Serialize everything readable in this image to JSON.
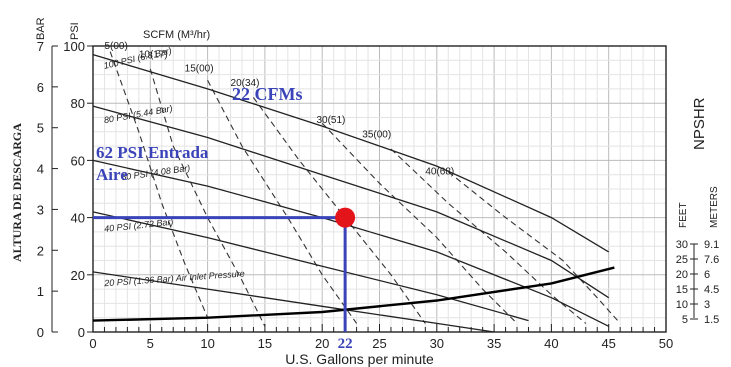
{
  "chart_data": {
    "type": "line",
    "xlabel": "U.S. Gallons per minute",
    "x_ticks": [
      0,
      5,
      10,
      15,
      20,
      25,
      30,
      35,
      40,
      45,
      50
    ],
    "xlim": [
      0,
      50
    ],
    "left_axes": {
      "bar_label": "BAR",
      "psi_label": "PSI",
      "bar_ticks": [
        "7",
        "6",
        "5",
        "4",
        "3",
        "2",
        "1",
        "0"
      ],
      "psi_ticks": [
        "100",
        "80",
        "60",
        "40",
        "20",
        "0"
      ],
      "ylim_psi": [
        0,
        100
      ],
      "rotated_label": "ALTURA DE DESCARGA"
    },
    "scfm_label": "SCFM (M³/hr)",
    "air_pressure_series": [
      {
        "name": "100 PSI (6.8 Bar)",
        "points": [
          [
            0,
            97
          ],
          [
            10,
            85
          ],
          [
            20,
            72
          ],
          [
            30,
            58
          ],
          [
            40,
            40
          ],
          [
            45,
            28
          ]
        ]
      },
      {
        "name": "80 PSI (5.44 Bar)",
        "points": [
          [
            0,
            79
          ],
          [
            10,
            68
          ],
          [
            20,
            55
          ],
          [
            30,
            42
          ],
          [
            40,
            25
          ],
          [
            45,
            12
          ]
        ]
      },
      {
        "name": "60 PSI (4.08 Bar)",
        "points": [
          [
            0,
            60
          ],
          [
            10,
            51
          ],
          [
            20,
            40
          ],
          [
            30,
            28
          ],
          [
            40,
            12
          ],
          [
            45,
            2
          ]
        ]
      },
      {
        "name": "40 PSI (2.72 Bar)",
        "points": [
          [
            0,
            42
          ],
          [
            10,
            33
          ],
          [
            20,
            23
          ],
          [
            30,
            13
          ],
          [
            38,
            4
          ]
        ]
      },
      {
        "name": "20 PSI (1.36 Bar) Air Inlet Pressure",
        "points": [
          [
            0,
            21
          ],
          [
            10,
            15
          ],
          [
            20,
            9
          ],
          [
            30,
            3
          ],
          [
            35,
            0
          ]
        ]
      }
    ],
    "scfm_labels": [
      "5(00)",
      "10(17)",
      "15(00)",
      "20(34)",
      "30(51)",
      "35(00)",
      "40(68)"
    ],
    "npshr": {
      "title": "NPSHR",
      "feet_label": "FEET",
      "meters_label": "METERS",
      "feet_ticks": [
        "30",
        "25",
        "20",
        "15",
        "10",
        "5"
      ],
      "meters_ticks": [
        "9.1",
        "7.6",
        "6",
        "4.5",
        "3",
        "1.5"
      ],
      "points": [
        [
          0,
          4
        ],
        [
          10,
          5
        ],
        [
          20,
          7
        ],
        [
          30,
          11
        ],
        [
          40,
          17
        ],
        [
          45.5,
          22.5
        ]
      ]
    },
    "annotations": {
      "flow_label": "22 CFMs",
      "inlet_label_line1": "62 PSI Entrada",
      "inlet_label_line2": "Aire",
      "x_marker": "22",
      "operating_point": {
        "x": 22,
        "psi": 40
      }
    },
    "colors": {
      "accent": "#3a44b8",
      "marker": "#e3141a",
      "curves": "#222222"
    }
  }
}
